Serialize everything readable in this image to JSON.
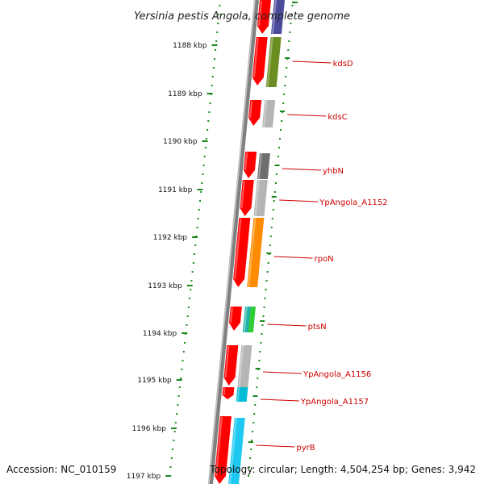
{
  "title": "Yersinia pestis Angola, complete genome",
  "accession": "Accession: NC_010159",
  "topology": "Topology: circular; Length: 4,504,254 bp; Genes: 3,942",
  "ticks": [
    {
      "label": "1188 kbp"
    },
    {
      "label": "1189 kbp"
    },
    {
      "label": "1190 kbp"
    },
    {
      "label": "1191 kbp"
    },
    {
      "label": "1192 kbp"
    },
    {
      "label": "1193 kbp"
    },
    {
      "label": "1194 kbp"
    },
    {
      "label": "1195 kbp"
    },
    {
      "label": "1196 kbp"
    },
    {
      "label": "1197 kbp"
    }
  ],
  "genes": [
    {
      "name": "kdsD",
      "color": "#6b8e23"
    },
    {
      "name": "kdsC",
      "color": "#b5b5b5"
    },
    {
      "name": "yhbN",
      "color": "#6e6e6e"
    },
    {
      "name": "YpAngola_A1152",
      "color": "#b5b5b5"
    },
    {
      "name": "rpoN",
      "color": "#ff8c00"
    },
    {
      "name": "ptsN",
      "color": "#20b2aa"
    },
    {
      "name": "YpAngola_A1156",
      "color": "#b5b5b5"
    },
    {
      "name": "YpAngola_A1157",
      "color": "#00bcd4"
    },
    {
      "name": "pyrB",
      "color": "#1ec8f0"
    }
  ],
  "colors": {
    "cds": "#ff0000",
    "backbone": "#808080",
    "tick": "#1a8a1a",
    "label_line": "#cc0000"
  }
}
